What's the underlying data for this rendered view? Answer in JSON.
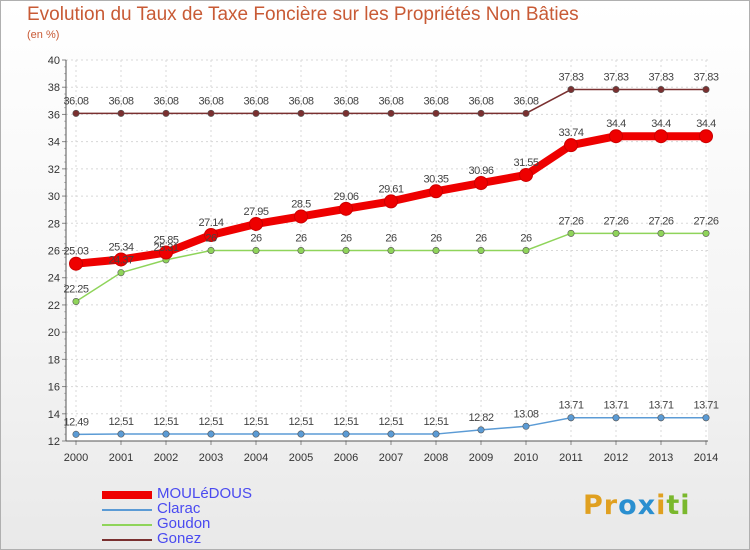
{
  "header": {
    "title": "Evolution du Taux de Taxe Foncière sur les Propriétés Non Bâties",
    "subtitle": "(en %)"
  },
  "logo": {
    "text": "Proxiti",
    "letters": [
      "P",
      "r",
      "o",
      "x",
      "i",
      "t",
      "i"
    ],
    "colors": [
      "#e0a020",
      "#e0a020",
      "#2a8fd0",
      "#2a8fd0",
      "#e0a020",
      "#7ab82d",
      "#7ab82d"
    ]
  },
  "chart_data": {
    "type": "line",
    "title": "Evolution du Taux de Taxe Foncière sur les Propriétés Non Bâties",
    "ylabel": "(en %)",
    "xlabel": "",
    "x": [
      "2000",
      "2001",
      "2002",
      "2003",
      "2004",
      "2005",
      "2006",
      "2007",
      "2008",
      "2009",
      "2010",
      "2011",
      "2012",
      "2013",
      "2014"
    ],
    "ylim": [
      12,
      40
    ],
    "yticks": [
      12,
      14,
      16,
      18,
      20,
      22,
      24,
      26,
      28,
      30,
      32,
      34,
      36,
      38,
      40
    ],
    "grid": true,
    "legend_position": "bottom-left",
    "series": [
      {
        "name": "MOULéDOUS",
        "color": "#ee0000",
        "emphasis": true,
        "values": [
          25.03,
          25.34,
          25.85,
          27.14,
          27.95,
          28.5,
          29.06,
          29.61,
          30.35,
          30.96,
          31.55,
          33.74,
          34.4,
          34.4,
          34.4
        ],
        "labels": [
          "25.03",
          "25.34",
          "25.85",
          "27.14",
          "27.95",
          "28.5",
          "29.06",
          "29.61",
          "30.35",
          "30.96",
          "31.55",
          "33.74",
          "34.4",
          "34.4",
          "34.4"
        ]
      },
      {
        "name": "Clarac",
        "color": "#5b9bd5",
        "values": [
          12.49,
          12.51,
          12.51,
          12.51,
          12.51,
          12.51,
          12.51,
          12.51,
          12.51,
          12.82,
          13.08,
          13.71,
          13.71,
          13.71,
          13.71
        ],
        "labels": [
          "12.49",
          "12.51",
          "12.51",
          "12.51",
          "12.51",
          "12.51",
          "12.51",
          "12.51",
          "12.51",
          "12.82",
          "13.08",
          "13.71",
          "13.71",
          "13.71",
          "13.71"
        ]
      },
      {
        "name": "Goudon",
        "color": "#8fd45a",
        "values": [
          22.25,
          24.37,
          25.31,
          26,
          26,
          26,
          26,
          26,
          26,
          26,
          26,
          27.26,
          27.26,
          27.26,
          27.26
        ],
        "labels": [
          "22.25",
          "24.37",
          "25.31",
          "26",
          "26",
          "26",
          "26",
          "26",
          "26",
          "26",
          "26",
          "27.26",
          "27.26",
          "27.26",
          "27.26"
        ]
      },
      {
        "name": "Gonez",
        "color": "#7a3030",
        "values": [
          36.08,
          36.08,
          36.08,
          36.08,
          36.08,
          36.08,
          36.08,
          36.08,
          36.08,
          36.08,
          36.08,
          37.83,
          37.83,
          37.83,
          37.83
        ],
        "labels": [
          "36.08",
          "36.08",
          "36.08",
          "36.08",
          "36.08",
          "36.08",
          "36.08",
          "36.08",
          "36.08",
          "36.08",
          "36.08",
          "37.83",
          "37.83",
          "37.83",
          "37.83"
        ]
      }
    ]
  }
}
